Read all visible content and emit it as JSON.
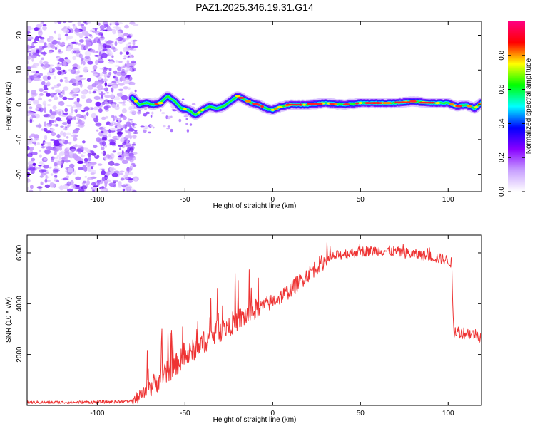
{
  "title": "PAZ1.2025.346.19.31.G14",
  "chart_data": [
    {
      "type": "heatmap",
      "name": "spectrogram",
      "xlabel": "Height of straight line (km)",
      "ylabel": "Frequency (Hz)",
      "xlim": [
        -140,
        119
      ],
      "ylim": [
        -25,
        24
      ],
      "xticks": [
        -100,
        -50,
        0,
        50,
        100
      ],
      "xtick_labels": [
        "-100",
        "-50",
        "0",
        "50",
        "100"
      ],
      "yticks": [
        -20,
        -10,
        0,
        10,
        20
      ],
      "ytick_labels": [
        "-20",
        "-10",
        "0",
        "10",
        "20"
      ],
      "noise_region_x": [
        -140,
        -80
      ],
      "ridge": {
        "x": [
          -80,
          -76,
          -72,
          -68,
          -64,
          -60,
          -56,
          -52,
          -48,
          -44,
          -40,
          -36,
          -32,
          -28,
          -24,
          -20,
          -16,
          -12,
          -8,
          -4,
          0,
          5,
          10,
          20,
          30,
          40,
          50,
          60,
          70,
          80,
          90,
          100,
          105,
          110,
          115,
          119
        ],
        "freq": [
          2.0,
          0.0,
          0.5,
          0.0,
          0.5,
          2.5,
          1.0,
          -1.0,
          -1.5,
          -3.0,
          -1.5,
          -0.5,
          -1.0,
          -0.5,
          1.0,
          2.5,
          1.5,
          0.5,
          0.0,
          -1.0,
          -1.5,
          -0.5,
          0.0,
          0.0,
          0.5,
          0.0,
          0.5,
          0.5,
          0.5,
          1.0,
          0.5,
          0.5,
          -0.5,
          0.0,
          -1.0,
          0.5
        ]
      },
      "colorbar": {
        "label": "Normalized spectral amplitude",
        "range": [
          0.0,
          1.0
        ],
        "ticks": [
          0.0,
          0.2,
          0.4,
          0.6,
          0.8
        ],
        "tick_labels": [
          "0.0",
          "0.2",
          "0.4",
          "0.6",
          "0.8"
        ],
        "colormap": [
          "#ffffff",
          "#c8a0ff",
          "#8800ff",
          "#0000ff",
          "#00ffff",
          "#00ff00",
          "#ffff00",
          "#ff0000",
          "#ff0080"
        ]
      }
    },
    {
      "type": "line",
      "name": "snr",
      "xlabel": "Height of straight line (km)",
      "ylabel": "SNR (10 * v/v)",
      "xlim": [
        -140,
        119
      ],
      "ylim": [
        0,
        6700
      ],
      "xticks": [
        -100,
        -50,
        0,
        50,
        100
      ],
      "xtick_labels": [
        "-100",
        "-50",
        "0",
        "50",
        "100"
      ],
      "yticks": [
        2000,
        4000,
        6000
      ],
      "ytick_labels": [
        "2000",
        "4000",
        "6000"
      ],
      "color": "#ee3333",
      "series": [
        {
          "name": "SNR",
          "x": [
            -140,
            -120,
            -100,
            -85,
            -80,
            -76,
            -72,
            -68,
            -64,
            -60,
            -56,
            -52,
            -48,
            -44,
            -40,
            -36,
            -32,
            -28,
            -24,
            -20,
            -16,
            -12,
            -8,
            -4,
            0,
            5,
            10,
            15,
            20,
            25,
            30,
            35,
            40,
            50,
            60,
            70,
            80,
            90,
            100,
            102,
            103,
            105,
            110,
            115,
            119
          ],
          "values": [
            120,
            120,
            130,
            150,
            180,
            350,
            550,
            800,
            1100,
            1300,
            1550,
            1800,
            2000,
            2250,
            2450,
            2650,
            2850,
            3000,
            3200,
            3350,
            3500,
            3650,
            3800,
            3950,
            4100,
            4300,
            4550,
            4850,
            5150,
            5450,
            5700,
            5850,
            5950,
            6050,
            6100,
            6050,
            5950,
            5850,
            5700,
            5600,
            2900,
            2900,
            2850,
            2800,
            2700
          ],
          "spike_range_x": [
            -72,
            -8
          ],
          "spike_peaks": [
            2700,
            2900,
            3700,
            4400,
            4550,
            4700,
            3400
          ]
        }
      ]
    }
  ]
}
